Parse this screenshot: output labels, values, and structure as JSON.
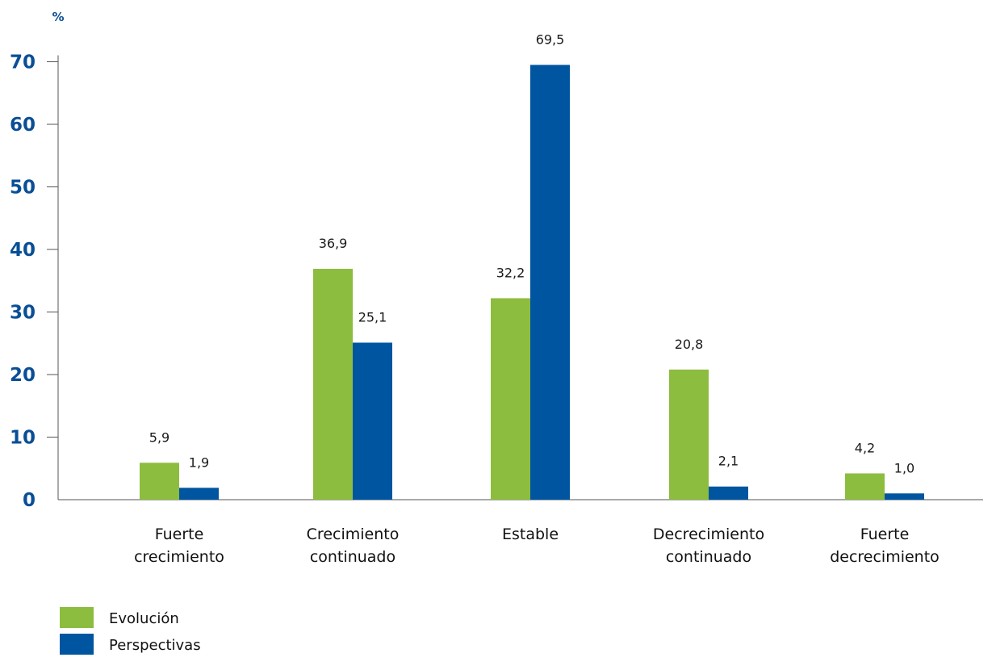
{
  "chart_data": {
    "type": "bar",
    "unit_label": "%",
    "ylim": [
      0,
      70
    ],
    "yticks": [
      0,
      10,
      20,
      30,
      40,
      50,
      60,
      70
    ],
    "ytick_labels": [
      "0",
      "10",
      "20",
      "30",
      "40",
      "50",
      "60",
      "70"
    ],
    "categories": [
      [
        "Fuerte",
        "crecimiento"
      ],
      [
        "Crecimiento",
        "continuado"
      ],
      [
        "Estable"
      ],
      [
        "Decrecimiento",
        "continuado"
      ],
      [
        "Fuerte",
        "decrecimiento"
      ]
    ],
    "series": [
      {
        "name": "Evolución",
        "color": "#8cbd3f",
        "values": [
          5.9,
          36.9,
          32.2,
          20.8,
          4.2
        ],
        "labels": [
          "5,9",
          "36,9",
          "32,2",
          "20,8",
          "4,2"
        ]
      },
      {
        "name": "Perspectivas",
        "color": "#0055a0",
        "values": [
          1.9,
          25.1,
          69.5,
          2.1,
          1.0
        ],
        "labels": [
          "1,9",
          "25,1",
          "69,5",
          "2,1",
          "1,0"
        ]
      }
    ],
    "axis_color": "#0a4f96",
    "grid": false,
    "legend_position": "bottom-left"
  }
}
